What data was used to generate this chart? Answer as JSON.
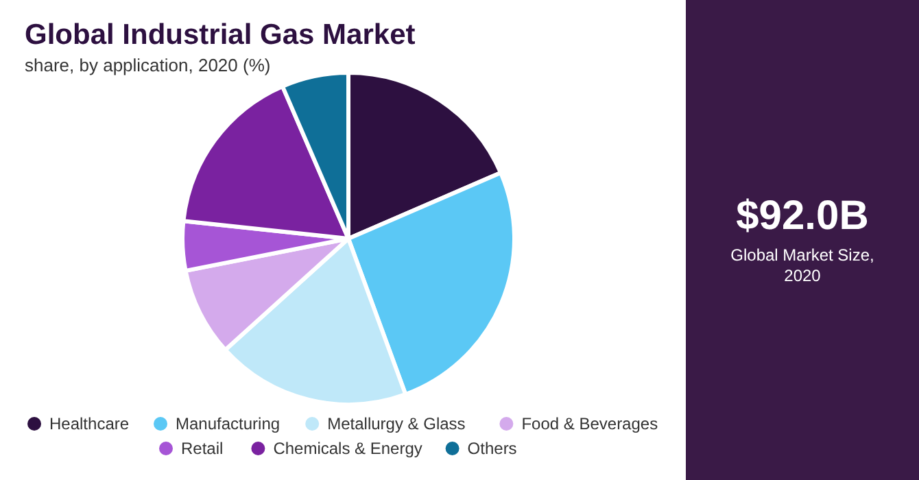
{
  "chart_data": {
    "type": "pie",
    "title": "Global Industrial Gas Market",
    "subtitle": "share, by application, 2020 (%)",
    "categories": [
      "Healthcare",
      "Manufacturing",
      "Metallurgy & Glass",
      "Food & Beverages",
      "Retail",
      "Chemicals & Energy",
      "Others"
    ],
    "values": [
      18.5,
      25.9,
      18.9,
      8.6,
      4.8,
      16.8,
      6.5
    ],
    "colors": [
      "#2d1040",
      "#5bc8f5",
      "#bfe8f9",
      "#d4aaec",
      "#a655d6",
      "#7a22a0",
      "#0f6f98"
    ],
    "legend": "bottom",
    "annotations": [
      "$92.0B",
      "Global Market Size, 2020"
    ]
  }
}
